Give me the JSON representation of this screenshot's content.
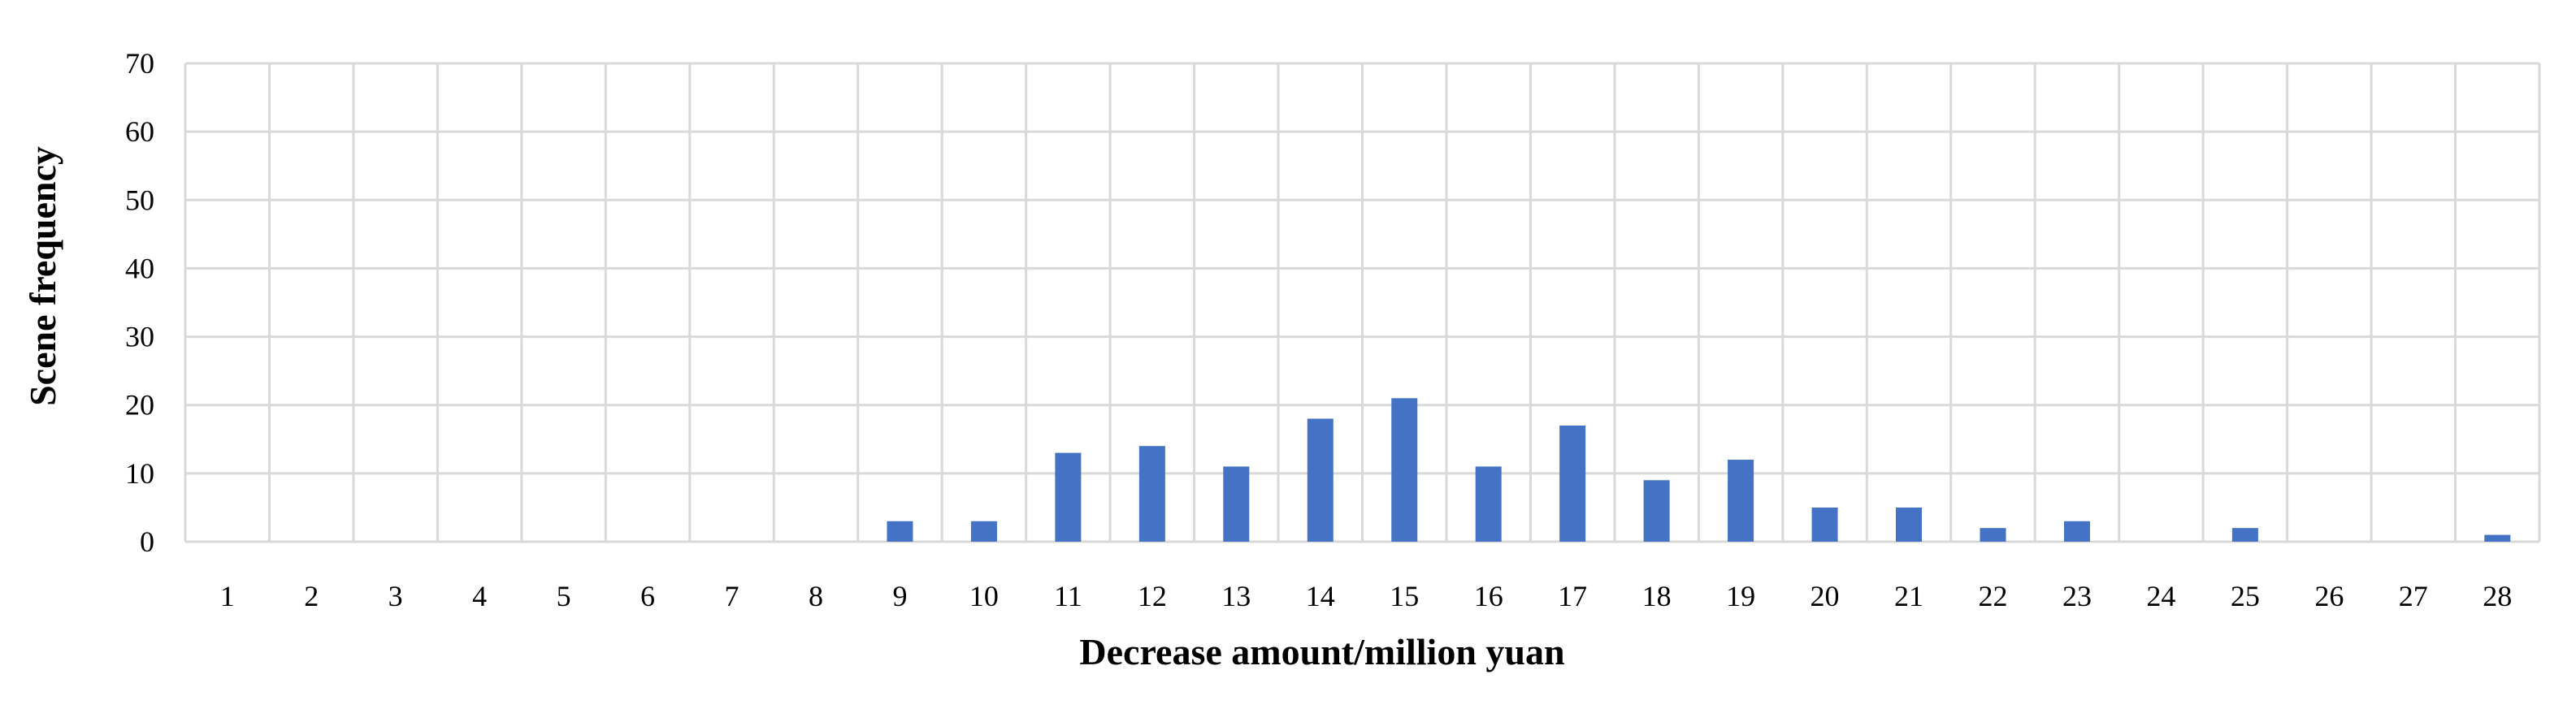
{
  "chart_data": {
    "type": "bar",
    "xlabel": "Decrease amount/million yuan",
    "ylabel": "Scene frequency",
    "categories": [
      "1",
      "2",
      "3",
      "4",
      "5",
      "6",
      "7",
      "8",
      "9",
      "10",
      "11",
      "12",
      "13",
      "14",
      "15",
      "16",
      "17",
      "18",
      "19",
      "20",
      "21",
      "22",
      "23",
      "24",
      "25",
      "26",
      "27",
      "28"
    ],
    "values": [
      0,
      0,
      0,
      0,
      0,
      0,
      0,
      0,
      3,
      3,
      13,
      14,
      11,
      18,
      21,
      11,
      17,
      9,
      12,
      5,
      5,
      2,
      3,
      0,
      2,
      0,
      0,
      1
    ],
    "ylim": [
      0,
      70
    ],
    "yticks": [
      "0",
      "10",
      "20",
      "30",
      "40",
      "50",
      "60",
      "70"
    ],
    "grid": true,
    "bar_color": "#4472C4",
    "grid_color": "#D9D9D9"
  }
}
